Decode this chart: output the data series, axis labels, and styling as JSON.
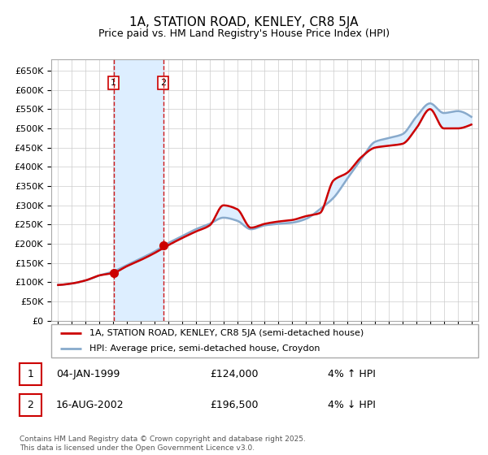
{
  "title": "1A, STATION ROAD, KENLEY, CR8 5JA",
  "subtitle": "Price paid vs. HM Land Registry's House Price Index (HPI)",
  "ylabel_ticks": [
    0,
    50000,
    100000,
    150000,
    200000,
    250000,
    300000,
    350000,
    400000,
    450000,
    500000,
    550000,
    600000,
    650000
  ],
  "ylim": [
    0,
    680000
  ],
  "xlim_start": 1994.5,
  "xlim_end": 2025.5,
  "sale1_x": 1999.02,
  "sale1_y": 124000,
  "sale2_x": 2002.63,
  "sale2_y": 196500,
  "sale1_date": "04-JAN-1999",
  "sale1_price": "£124,000",
  "sale1_note": "4% ↑ HPI",
  "sale2_date": "16-AUG-2002",
  "sale2_price": "£196,500",
  "sale2_note": "4% ↓ HPI",
  "legend_line1": "1A, STATION ROAD, KENLEY, CR8 5JA (semi-detached house)",
  "legend_line2": "HPI: Average price, semi-detached house, Croydon",
  "footer": "Contains HM Land Registry data © Crown copyright and database right 2025.\nThis data is licensed under the Open Government Licence v3.0.",
  "line_color_red": "#cc0000",
  "line_color_blue": "#88aacc",
  "fill_color": "#ddeeff",
  "background_color": "#ffffff",
  "grid_color": "#cccccc",
  "title_fontsize": 11,
  "subtitle_fontsize": 9,
  "years": [
    1995,
    1996,
    1997,
    1998,
    1999,
    2000,
    2001,
    2002,
    2003,
    2004,
    2005,
    2006,
    2007,
    2008,
    2009,
    2010,
    2011,
    2012,
    2013,
    2014,
    2015,
    2016,
    2017,
    2018,
    2019,
    2020,
    2021,
    2022,
    2023,
    2024,
    2025
  ],
  "hpi_values": [
    93000,
    97000,
    105000,
    118000,
    128000,
    145000,
    162000,
    180000,
    202000,
    220000,
    238000,
    252000,
    268000,
    260000,
    238000,
    248000,
    252000,
    255000,
    265000,
    290000,
    320000,
    370000,
    420000,
    465000,
    475000,
    485000,
    530000,
    565000,
    540000,
    545000,
    530000
  ],
  "price_values": [
    93000,
    97000,
    105000,
    118000,
    124000,
    142000,
    158000,
    176000,
    196500,
    215000,
    232000,
    248000,
    300000,
    290000,
    242000,
    252000,
    258000,
    262000,
    272000,
    280000,
    365000,
    385000,
    425000,
    450000,
    455000,
    460000,
    500000,
    550000,
    500000,
    500000,
    510000
  ]
}
